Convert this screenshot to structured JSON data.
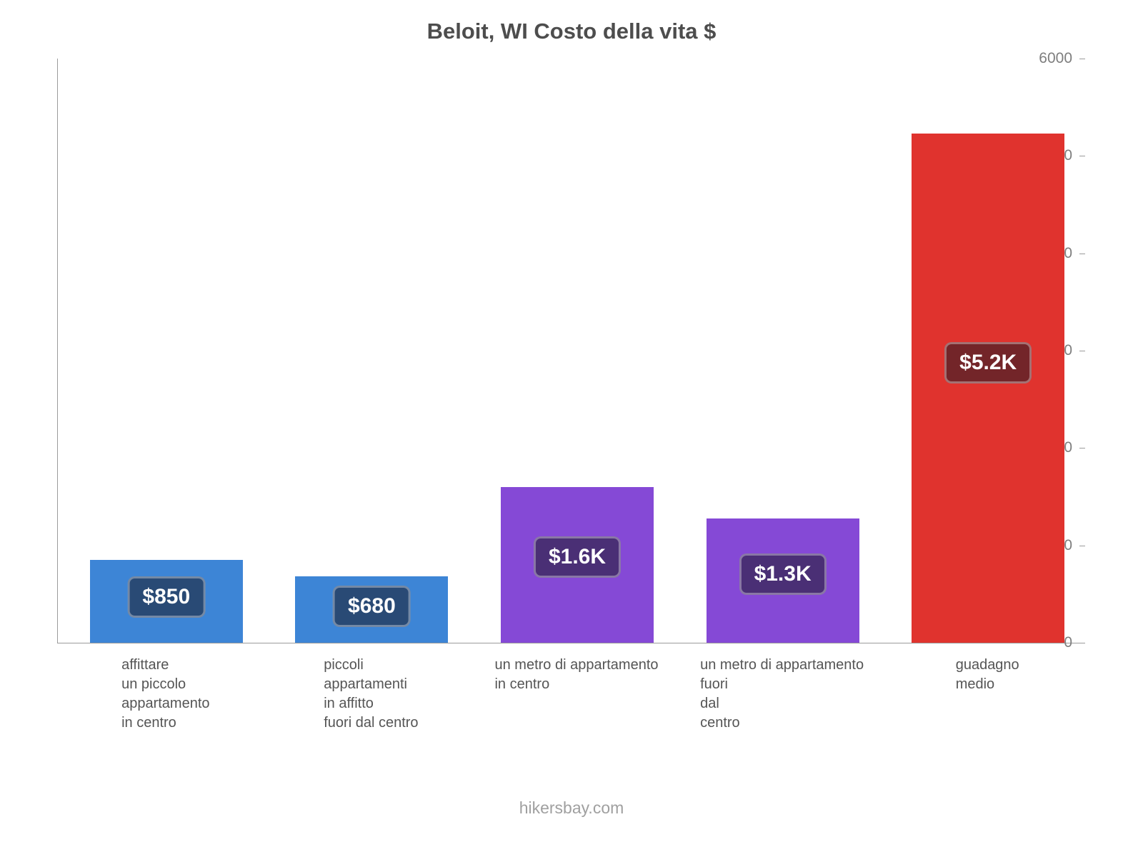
{
  "title": "Beloit, WI Costo della vita $",
  "footer": "hikersbay.com",
  "chart_data": {
    "type": "bar",
    "title": "Beloit, WI Costo della vita $",
    "categories": [
      [
        "affittare",
        "un piccolo",
        "appartamento",
        "in centro"
      ],
      [
        "piccoli",
        "appartamenti",
        "in affitto",
        "fuori dal centro"
      ],
      [
        "un metro di appartamento",
        "in centro"
      ],
      [
        "un metro di appartamento",
        "fuori",
        "dal",
        "centro"
      ],
      [
        "guadagno",
        "medio"
      ]
    ],
    "values": [
      850,
      680,
      1600,
      1280,
      5230
    ],
    "value_labels": [
      "$850",
      "$680",
      "$1.6K",
      "$1.3K",
      "$5.2K"
    ],
    "bar_colors": [
      "#3d85d6",
      "#3d85d6",
      "#8549d6",
      "#8549d6",
      "#e0332e"
    ],
    "xlabel": "",
    "ylabel": "",
    "ylim": [
      0,
      6000
    ],
    "yticks": [
      0,
      1000,
      2000,
      3000,
      4000,
      5000,
      6000
    ],
    "grid": false,
    "legend": false,
    "currency": "$"
  }
}
